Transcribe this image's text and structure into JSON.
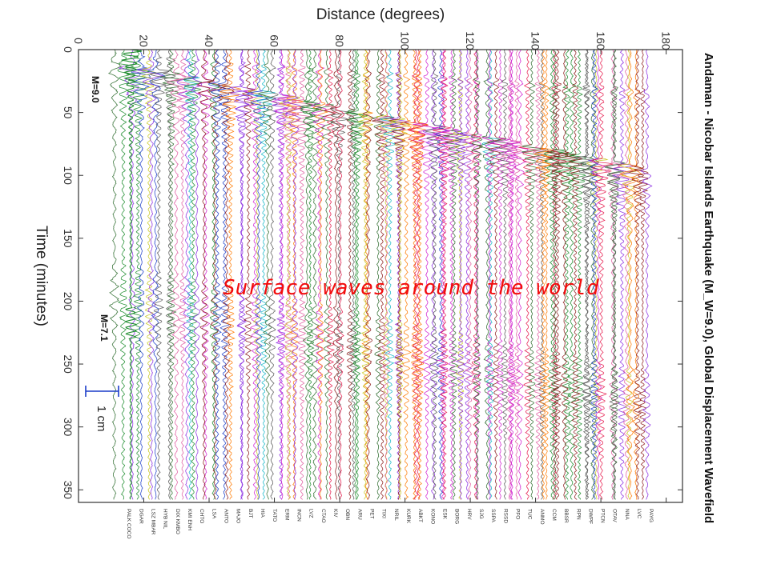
{
  "chart_data": {
    "type": "line",
    "title": "Andaman - Nicobar Islands Earthquake (M_W=9.0), Global Displacement Wavefield",
    "xlabel": "Distance (degrees)",
    "ylabel": "Time (minutes)",
    "xlim": [
      0,
      185
    ],
    "ylim": [
      0,
      360
    ],
    "x_ticks": [
      "0",
      "20",
      "40",
      "60",
      "80",
      "100",
      "120",
      "140",
      "160",
      "180"
    ],
    "y_ticks": [
      "0",
      "50",
      "100",
      "150",
      "200",
      "250",
      "300",
      "350"
    ],
    "grid": false,
    "annotations": {
      "mainshock": "M=9.0",
      "aftershock": "M=7.1",
      "scale_bar": "1 cm",
      "caption": "Surface waves around the world"
    },
    "colors": [
      "#e6194b",
      "#1a3cc9",
      "#1c8c2c",
      "#d01fd0",
      "#c8c81e",
      "#16b8c8",
      "#8a2be2",
      "#555555",
      "#ff7a00",
      "#8b1a1a",
      "#2e6b2e",
      "#e05aa0"
    ],
    "station_labels": [
      "PALK COCO",
      "DGAR",
      "LSZ MBAR",
      "HYB NIL",
      "DIX KMBO",
      "KMI ENH",
      "CHTO",
      "LSA",
      "ANTO",
      "MAJO",
      "BJT",
      "HIA",
      "TATO",
      "ERM",
      "INCN",
      "LVZ",
      "CTAO",
      "KIV",
      "OBN",
      "ARU",
      "PET",
      "TIXI",
      "NRIL",
      "KURK",
      "ABKT",
      "KONO",
      "ESK",
      "BORG",
      "HRV",
      "SJG",
      "SSPA",
      "RSSD",
      "PFO",
      "TUC",
      "ANMO",
      "CCM",
      "BBSR",
      "RPN",
      "DWPF",
      "PTCN",
      "OTAV",
      "NNA",
      "LVC",
      "PAYG"
    ]
  }
}
